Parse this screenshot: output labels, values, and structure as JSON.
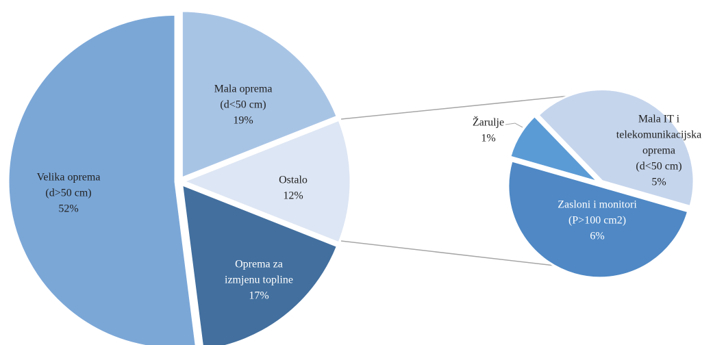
{
  "chart_data": {
    "type": "pie",
    "categories": [
      [
        "Mala oprema",
        "(d<50 cm)"
      ],
      [
        "Ostalo"
      ],
      [
        "Oprema za",
        "izmjenu topline"
      ],
      [
        "Velika oprema",
        "(d>50 cm)"
      ]
    ],
    "values": [
      19,
      12,
      17,
      52
    ],
    "value_labels": [
      "19%",
      "12%",
      "17%",
      "52%"
    ],
    "colors": [
      "#a8c4e5",
      "#dde6f4",
      "#426f9e",
      "#7ba7d7"
    ],
    "secondary": {
      "categories": [
        [
          "Žarulje"
        ],
        [
          "Mala IT i",
          "telekomunikacijska",
          "oprema",
          "(d<50 cm)"
        ],
        [
          "Zasloni i monitori",
          "(P>100  cm2)"
        ]
      ],
      "values": [
        1,
        5,
        6
      ],
      "value_labels": [
        "1%",
        "5%",
        "6%"
      ],
      "colors": [
        "#5b9bd5",
        "#c5d5ec",
        "#4f88c5"
      ]
    }
  }
}
